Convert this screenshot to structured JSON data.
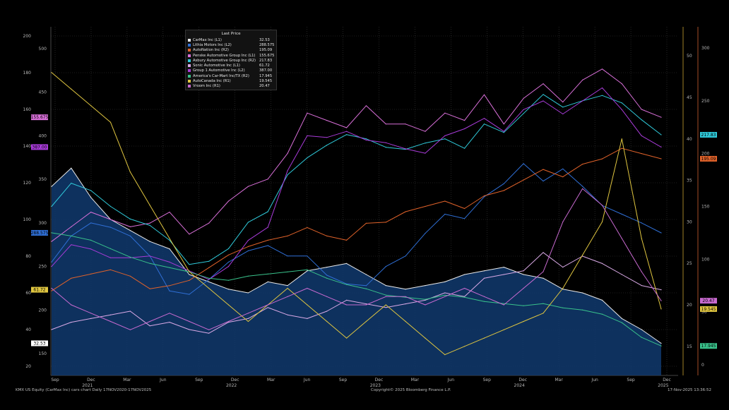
{
  "chart_data": {
    "type": "line",
    "title": "KMX US Equity (CarMax Inc) cars chart Daily 17NOV2020-17NOV2025",
    "legend_title": "Last Price",
    "x_ticks": [
      "Sep",
      "Dec",
      "Mar",
      "Jun",
      "Sep",
      "Dec",
      "Mar",
      "Jun",
      "Sep",
      "Dec",
      "Mar",
      "Jun",
      "Sep",
      "Dec",
      "Mar",
      "Jun",
      "Sep",
      "Dec"
    ],
    "year_labels": [
      "2021",
      "2022",
      "2023",
      "2024",
      "2025"
    ],
    "left_axis_outer": {
      "ticks": [
        20,
        40,
        60,
        80,
        100,
        120,
        140,
        160,
        180,
        200
      ],
      "range": [
        15,
        205
      ]
    },
    "left_axis_inner": {
      "ticks": [
        150,
        200,
        250,
        300,
        350,
        400,
        450,
        500
      ],
      "range": [
        125,
        525
      ]
    },
    "right_axis_inner": {
      "ticks": [
        15,
        20,
        25,
        30,
        35,
        40,
        45,
        50
      ],
      "range": [
        11.5,
        53.5
      ]
    },
    "right_axis_outer": {
      "ticks": [
        0,
        50,
        100,
        150,
        200,
        250,
        300
      ],
      "range": [
        -10,
        320
      ]
    },
    "series": [
      {
        "name": "CarMax Inc  (L1)",
        "axis": "L1",
        "last": "32.53",
        "color": "#e8e8e8",
        "area": true,
        "values": [
          118,
          128,
          112,
          100,
          94,
          88,
          84,
          70,
          66,
          62,
          60,
          66,
          64,
          72,
          74,
          76,
          70,
          64,
          62,
          64,
          66,
          70,
          72,
          74,
          70,
          68,
          62,
          60,
          56,
          46,
          40,
          32.5
        ]
      },
      {
        "name": "Lithia Motors Inc  (L2)",
        "axis": "L2",
        "last": "288.575",
        "color": "#2f6fd6",
        "values": [
          255,
          285,
          300,
          295,
          285,
          262,
          222,
          218,
          235,
          255,
          268,
          274,
          262,
          262,
          240,
          230,
          228,
          250,
          262,
          288,
          310,
          305,
          330,
          345,
          368,
          348,
          362,
          342,
          320,
          310,
          300,
          288.6
        ]
      },
      {
        "name": "AutoNation Inc  (R2)",
        "axis": "R2",
        "last": "195.09",
        "color": "#e0622a",
        "values": [
          70,
          82,
          86,
          90,
          84,
          72,
          75,
          80,
          92,
          104,
          112,
          118,
          122,
          130,
          122,
          118,
          134,
          135,
          145,
          150,
          155,
          148,
          160,
          165,
          175,
          185,
          178,
          190,
          195,
          205,
          200,
          195.1
        ]
      },
      {
        "name": "Penske Automotive Group Inc  (L1)",
        "axis": "L1",
        "last": "155.675",
        "color": "#d86fd8",
        "values": [
          88,
          96,
          104,
          100,
          96,
          98,
          104,
          92,
          98,
          110,
          118,
          122,
          136,
          158,
          154,
          150,
          162,
          152,
          152,
          148,
          158,
          154,
          168,
          152,
          166,
          174,
          164,
          176,
          182,
          174,
          160,
          155.7
        ]
      },
      {
        "name": "Asbury Automotive Group Inc  (R2)",
        "axis": "R2",
        "last": "217.83",
        "color": "#2fc9d9",
        "values": [
          150,
          172,
          165,
          150,
          138,
          132,
          118,
          95,
          98,
          110,
          135,
          145,
          180,
          196,
          208,
          218,
          214,
          206,
          204,
          210,
          214,
          205,
          228,
          220,
          238,
          256,
          244,
          250,
          255,
          248,
          232,
          217.8
        ]
      },
      {
        "name": "Sonic Automotive Inc  (L1)",
        "axis": "L1",
        "last": "61.72",
        "color": "#d9a9e6",
        "values": [
          40,
          44,
          46,
          48,
          50,
          42,
          44,
          40,
          38,
          44,
          46,
          52,
          48,
          46,
          50,
          56,
          54,
          52,
          54,
          56,
          60,
          58,
          68,
          70,
          72,
          82,
          74,
          80,
          76,
          70,
          64,
          61.7
        ]
      },
      {
        "name": "Group 1 Automotive Inc  (L2)",
        "axis": "L2",
        "last": "387.00",
        "color": "#a83bd8",
        "values": [
          250,
          275,
          270,
          260,
          260,
          262,
          255,
          245,
          235,
          250,
          280,
          295,
          360,
          400,
          398,
          405,
          395,
          392,
          385,
          380,
          400,
          408,
          420,
          405,
          430,
          440,
          425,
          440,
          455,
          430,
          400,
          387
        ]
      },
      {
        "name": "America's Car-Mart Inc/TX  (R2)",
        "axis": "R2",
        "last": "17.945",
        "color": "#39c28b",
        "values": [
          125,
          122,
          118,
          110,
          102,
          96,
          92,
          88,
          82,
          80,
          84,
          86,
          88,
          90,
          82,
          76,
          72,
          66,
          64,
          62,
          66,
          64,
          60,
          58,
          56,
          58,
          54,
          52,
          48,
          40,
          26,
          17.9
        ]
      },
      {
        "name": "AutoCanada Inc  (R1)",
        "axis": "R1",
        "last": "19.545",
        "color": "#e0c640",
        "values": [
          48,
          46,
          44,
          42,
          36,
          32,
          28,
          24,
          22,
          20,
          18,
          20,
          22,
          20,
          18,
          16,
          18,
          20,
          18,
          16,
          14,
          15,
          16,
          17,
          18,
          19,
          22,
          26,
          30,
          40,
          28,
          19.5
        ]
      },
      {
        "name": "Vroom Inc  (R1)",
        "axis": "R1",
        "last": "20.47",
        "color": "#c86ad0",
        "values": [
          22,
          20,
          19,
          18,
          17,
          18,
          19,
          18,
          17,
          18,
          19,
          20,
          21,
          22,
          21,
          20,
          20,
          21,
          21,
          20,
          21,
          22,
          21,
          20,
          22,
          24,
          30,
          34,
          32,
          28,
          24,
          20.5
        ]
      }
    ],
    "tags": [
      {
        "text": "155.675",
        "color": "#d86fd8",
        "side": "left"
      },
      {
        "text": "387.00",
        "color": "#a83bd8",
        "side": "left"
      },
      {
        "text": "288.575",
        "color": "#2f6fd6",
        "side": "left"
      },
      {
        "text": "61.72",
        "color": "#e0c640",
        "side": "left"
      },
      {
        "text": "32.53",
        "color": "#ffffff",
        "side": "left"
      },
      {
        "text": "217.83",
        "color": "#2fc9d9",
        "side": "right"
      },
      {
        "text": "195.09",
        "color": "#e0622a",
        "side": "right"
      },
      {
        "text": "20.47",
        "color": "#c86ad0",
        "side": "right"
      },
      {
        "text": "19.545",
        "color": "#e0c640",
        "side": "right"
      },
      {
        "text": "17.945",
        "color": "#39c28b",
        "side": "right"
      }
    ]
  },
  "footer": {
    "left": "KMX US Equity (CarMax Inc) cars chart Daily 17NOV2020-17NOV2025",
    "center": "Copyright© 2025 Bloomberg Finance L.P.",
    "right": "17-Nov-2025 13:36:52"
  }
}
